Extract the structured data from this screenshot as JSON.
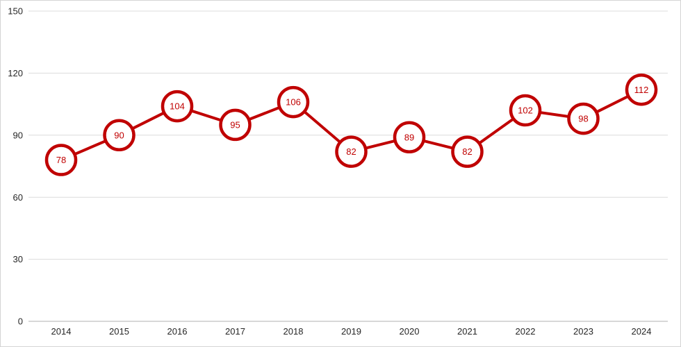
{
  "chart_data": {
    "type": "line",
    "title": "",
    "xlabel": "",
    "ylabel": "",
    "x": [
      "2014",
      "2015",
      "2016",
      "2017",
      "2018",
      "2019",
      "2020",
      "2021",
      "2022",
      "2023",
      "2024"
    ],
    "series": [
      {
        "name": "values",
        "values": [
          78,
          90,
          104,
          95,
          106,
          82,
          89,
          82,
          102,
          98,
          112
        ]
      }
    ],
    "ylim": [
      0,
      150
    ],
    "yticks": [
      0,
      30,
      60,
      90,
      120,
      150
    ],
    "grid": true,
    "legend": false,
    "marker_style": "labeled-circle",
    "colors": {
      "line": "#c00000",
      "marker_fill": "#ffffff",
      "marker_stroke": "#c00000",
      "value_label": "#c00000",
      "grid": "#dcdcdc",
      "axis": "#b0b0b0",
      "tick_label": "#262626",
      "background": "#ffffff",
      "frame_border": "#d4d4d4"
    }
  }
}
